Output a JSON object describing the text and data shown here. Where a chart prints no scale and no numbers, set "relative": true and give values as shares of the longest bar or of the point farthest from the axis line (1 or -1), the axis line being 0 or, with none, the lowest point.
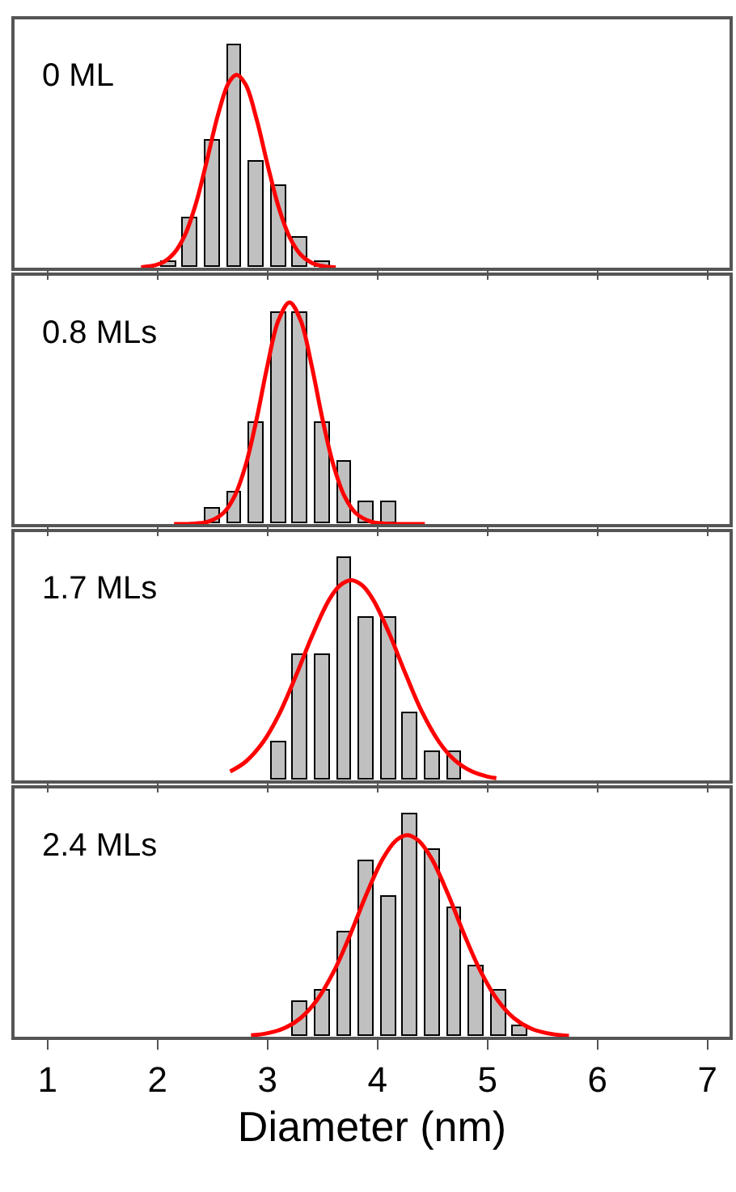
{
  "chart_data": [
    {
      "type": "histogram",
      "title": "0 ML",
      "relative": true,
      "xlim": [
        0.7,
        7.2
      ],
      "xticks": [
        1,
        2,
        3,
        4,
        5,
        6,
        7
      ],
      "tick_labels": false,
      "grid": false,
      "series": [
        {
          "type": "histogram",
          "color": "#c0c0c0",
          "bins": [
            2.0,
            2.2,
            2.4,
            2.6,
            2.8,
            3.0,
            3.2,
            3.4,
            3.6
          ],
          "values": [
            0.022,
            0.224,
            0.571,
            1,
            0.48,
            0.371,
            0.137,
            0.022
          ]
        },
        {
          "type": "line",
          "color": "#ff0000",
          "x": [
            1.85,
            1.95,
            2.05,
            2.15,
            2.25,
            2.35,
            2.45,
            2.55,
            2.65,
            2.72,
            2.8,
            2.9,
            3.0,
            3.1,
            3.2,
            3.3,
            3.4,
            3.5,
            3.62
          ],
          "values": [
            0.002,
            0.008,
            0.024,
            0.065,
            0.148,
            0.291,
            0.486,
            0.691,
            0.837,
            0.87,
            0.827,
            0.671,
            0.465,
            0.274,
            0.138,
            0.059,
            0.022,
            0.007,
            0.001
          ]
        }
      ]
    },
    {
      "type": "histogram",
      "title": "0.8 MLs",
      "relative": true,
      "xlim": [
        0.7,
        7.2
      ],
      "xticks": [
        1,
        2,
        3,
        4,
        5,
        6,
        7
      ],
      "tick_labels": false,
      "grid": false,
      "series": [
        {
          "type": "histogram",
          "color": "#c0c0c0",
          "bins": [
            2.4,
            2.6,
            2.8,
            3.0,
            3.2,
            3.4,
            3.6,
            3.8,
            4.0,
            4.2
          ],
          "values": [
            0.067,
            0.139,
            0.456,
            0.951,
            0.951,
            0.456,
            0.279,
            0.101,
            0.101
          ]
        },
        {
          "type": "line",
          "color": "#ff0000",
          "x": [
            2.15,
            2.3,
            2.45,
            2.6,
            2.7,
            2.8,
            2.9,
            3.0,
            3.1,
            3.2,
            3.3,
            3.4,
            3.5,
            3.6,
            3.7,
            3.8,
            3.95,
            4.1,
            4.25,
            4.43
          ],
          "values": [
            0.0,
            0.001,
            0.009,
            0.05,
            0.125,
            0.264,
            0.472,
            0.717,
            0.92,
            1,
            0.92,
            0.717,
            0.472,
            0.264,
            0.125,
            0.05,
            0.009,
            0.001,
            0.0,
            0.0
          ]
        }
      ]
    },
    {
      "type": "histogram",
      "title": "1.7 MLs",
      "relative": true,
      "xlim": [
        0.7,
        7.2
      ],
      "xticks": [
        1,
        2,
        3,
        4,
        5,
        6,
        7
      ],
      "tick_labels": false,
      "grid": false,
      "series": [
        {
          "type": "histogram",
          "color": "#c0c0c0",
          "bins": [
            3.0,
            3.2,
            3.4,
            3.6,
            3.8,
            4.0,
            4.2,
            4.4,
            4.6,
            4.8
          ],
          "values": [
            0.169,
            0.563,
            0.563,
            1,
            0.736,
            0.736,
            0.301,
            0.125,
            0.125
          ]
        },
        {
          "type": "line",
          "color": "#ff0000",
          "x": [
            2.66,
            2.8,
            2.96,
            3.1,
            3.26,
            3.4,
            3.56,
            3.66,
            3.76,
            3.86,
            3.96,
            4.1,
            4.26,
            4.4,
            4.56,
            4.7,
            4.86,
            5.0,
            5.08
          ],
          "values": [
            0.04,
            0.084,
            0.173,
            0.293,
            0.474,
            0.646,
            0.815,
            0.88,
            0.903,
            0.88,
            0.815,
            0.67,
            0.474,
            0.313,
            0.173,
            0.092,
            0.04,
            0.017,
            0.01
          ]
        }
      ]
    },
    {
      "type": "histogram",
      "title": "2.4 MLs",
      "relative": true,
      "xlim": [
        0.7,
        7.2
      ],
      "xticks": [
        1,
        2,
        3,
        4,
        5,
        6,
        7
      ],
      "xlabel": "Diameter (nm)",
      "tick_labels": "x",
      "grid": false,
      "series": [
        {
          "type": "histogram",
          "color": "#c0c0c0",
          "bins": [
            3.2,
            3.4,
            3.6,
            3.8,
            4.0,
            4.2,
            4.4,
            4.6,
            4.8,
            5.0,
            5.2,
            5.4
          ],
          "values": [
            0.16,
            0.211,
            0.472,
            0.789,
            0.631,
            1,
            0.845,
            0.58,
            0.314,
            0.211,
            0.049
          ]
        },
        {
          "type": "line",
          "color": "#ff0000",
          "x": [
            2.85,
            3.0,
            3.15,
            3.3,
            3.45,
            3.6,
            3.75,
            3.9,
            4.05,
            4.17,
            4.27,
            4.37,
            4.49,
            4.64,
            4.79,
            4.94,
            5.09,
            5.24,
            5.39,
            5.54,
            5.74
          ],
          "values": [
            0.006,
            0.016,
            0.038,
            0.084,
            0.166,
            0.292,
            0.459,
            0.644,
            0.805,
            0.886,
            0.909,
            0.886,
            0.805,
            0.644,
            0.459,
            0.292,
            0.166,
            0.084,
            0.038,
            0.016,
            0.004
          ]
        }
      ]
    }
  ]
}
